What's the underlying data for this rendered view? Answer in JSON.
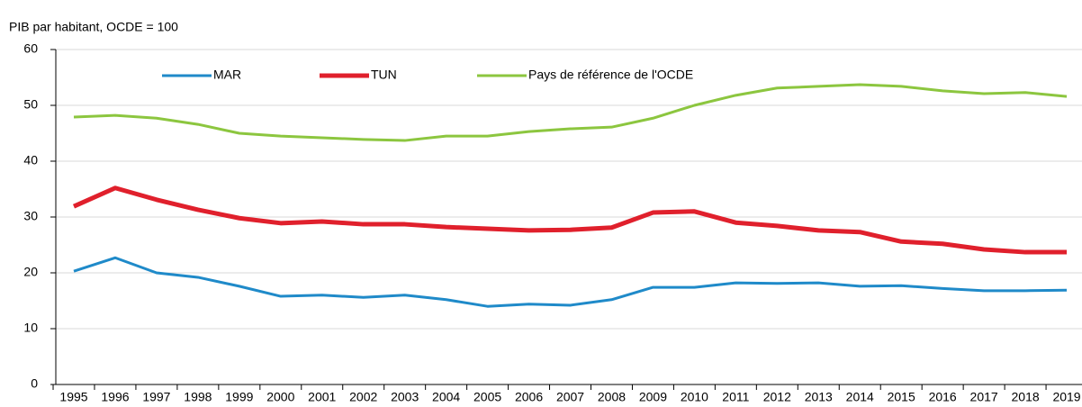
{
  "chart_data": {
    "type": "line",
    "y_axis_label": "PIB par habitant, OCDE = 100",
    "categories": [
      "1995",
      "1996",
      "1997",
      "1998",
      "1999",
      "2000",
      "2001",
      "2002",
      "2003",
      "2004",
      "2005",
      "2006",
      "2007",
      "2008",
      "2009",
      "2010",
      "2011",
      "2012",
      "2013",
      "2014",
      "2015",
      "2016",
      "2017",
      "2018",
      "2019"
    ],
    "series": [
      {
        "name": "MAR",
        "color": "#1f8ac9",
        "values": [
          20.3,
          22.7,
          20.0,
          19.2,
          17.6,
          15.8,
          16.0,
          15.6,
          16.0,
          15.2,
          14.0,
          14.4,
          14.2,
          15.2,
          17.4,
          17.4,
          18.2,
          18.1,
          18.2,
          17.6,
          17.7,
          17.2,
          16.8,
          16.8,
          16.9
        ]
      },
      {
        "name": "TUN",
        "color": "#e0202c",
        "values": [
          31.9,
          35.2,
          33.1,
          31.3,
          29.8,
          28.9,
          29.2,
          28.7,
          28.7,
          28.2,
          27.9,
          27.6,
          27.7,
          28.1,
          30.8,
          31.0,
          29.0,
          28.4,
          27.6,
          27.3,
          25.6,
          25.2,
          24.2,
          23.7,
          23.7
        ]
      },
      {
        "name": "Pays de référence de l'OCDE",
        "color": "#8cc63f",
        "values": [
          47.9,
          48.2,
          47.7,
          46.6,
          45.0,
          44.5,
          44.2,
          43.9,
          43.7,
          44.5,
          44.5,
          45.3,
          45.8,
          46.1,
          47.7,
          50.0,
          51.8,
          53.1,
          53.4,
          53.7,
          53.4,
          52.6,
          52.1,
          52.3,
          51.6
        ]
      }
    ],
    "ylim": [
      0,
      60
    ],
    "yticks": [
      0,
      10,
      20,
      30,
      40,
      50,
      60
    ],
    "grid": true
  }
}
